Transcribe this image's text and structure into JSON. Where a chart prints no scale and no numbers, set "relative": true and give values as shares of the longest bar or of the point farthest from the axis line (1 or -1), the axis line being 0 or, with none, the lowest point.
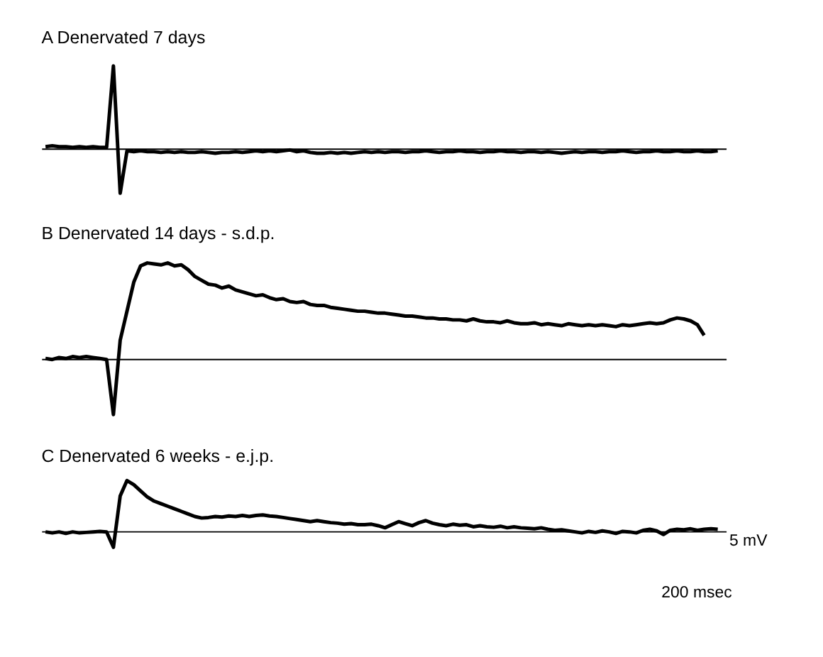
{
  "chart_data": [
    {
      "type": "line",
      "title": "A   Denervated 7 days",
      "relative": true,
      "marker": "none",
      "line_style": "solid",
      "categories": [
        null,
        null,
        null,
        null,
        null,
        null,
        null,
        null,
        null,
        null,
        null,
        null,
        null,
        null,
        null,
        null,
        null,
        null,
        null,
        null,
        null,
        null,
        null,
        null,
        null,
        null,
        null,
        null,
        null,
        null,
        null,
        null,
        null,
        null,
        null,
        null,
        null,
        null,
        null,
        null,
        null,
        null,
        null,
        null,
        null,
        null,
        null,
        null,
        null,
        null,
        null,
        null,
        null,
        null,
        null,
        null,
        null,
        null,
        null,
        null,
        null,
        null,
        null,
        null,
        null,
        null,
        null,
        null,
        null,
        null,
        null,
        null,
        null,
        null,
        null,
        null,
        null,
        null,
        null,
        null,
        null,
        null,
        null,
        null,
        null,
        null,
        null,
        null,
        null,
        null,
        null,
        null,
        null,
        null,
        null,
        null,
        null,
        null,
        null,
        null
      ],
      "ref_lines": [
        {
          "axis": "y",
          "value": 0,
          "color": "#000000"
        }
      ],
      "series": [
        {
          "color": "#000000",
          "values": [
            0.03,
            0.04,
            0.03,
            0.03,
            0.02,
            0.03,
            0.02,
            0.03,
            0.02,
            0.02,
            1.0,
            -0.53,
            -0.02,
            -0.03,
            -0.02,
            -0.03,
            -0.03,
            -0.04,
            -0.03,
            -0.04,
            -0.03,
            -0.04,
            -0.04,
            -0.03,
            -0.04,
            -0.05,
            -0.04,
            -0.04,
            -0.03,
            -0.04,
            -0.03,
            -0.02,
            -0.03,
            -0.02,
            -0.03,
            -0.02,
            -0.01,
            -0.03,
            -0.02,
            -0.04,
            -0.05,
            -0.05,
            -0.04,
            -0.05,
            -0.04,
            -0.05,
            -0.04,
            -0.03,
            -0.04,
            -0.03,
            -0.04,
            -0.03,
            -0.03,
            -0.04,
            -0.03,
            -0.03,
            -0.02,
            -0.03,
            -0.04,
            -0.03,
            -0.03,
            -0.02,
            -0.03,
            -0.03,
            -0.04,
            -0.03,
            -0.03,
            -0.02,
            -0.03,
            -0.03,
            -0.04,
            -0.03,
            -0.03,
            -0.04,
            -0.03,
            -0.04,
            -0.05,
            -0.04,
            -0.03,
            -0.04,
            -0.03,
            -0.03,
            -0.04,
            -0.03,
            -0.03,
            -0.02,
            -0.03,
            -0.04,
            -0.03,
            -0.03,
            -0.02,
            -0.03,
            -0.03,
            -0.02,
            -0.03,
            -0.03,
            -0.02,
            -0.03,
            -0.03,
            -0.02
          ]
        }
      ]
    },
    {
      "type": "line",
      "title": "B   Denervated 14 days - s.d.p.",
      "relative": true,
      "marker": "none",
      "line_style": "solid",
      "categories": [
        null,
        null,
        null,
        null,
        null,
        null,
        null,
        null,
        null,
        null,
        null,
        null,
        null,
        null,
        null,
        null,
        null,
        null,
        null,
        null,
        null,
        null,
        null,
        null,
        null,
        null,
        null,
        null,
        null,
        null,
        null,
        null,
        null,
        null,
        null,
        null,
        null,
        null,
        null,
        null,
        null,
        null,
        null,
        null,
        null,
        null,
        null,
        null,
        null,
        null,
        null,
        null,
        null,
        null,
        null,
        null,
        null,
        null,
        null,
        null,
        null,
        null,
        null,
        null,
        null,
        null,
        null,
        null,
        null,
        null,
        null,
        null,
        null,
        null,
        null,
        null,
        null,
        null,
        null,
        null,
        null,
        null,
        null,
        null,
        null,
        null,
        null,
        null,
        null,
        null,
        null,
        null,
        null,
        null,
        null,
        null,
        null,
        null,
        null,
        null
      ],
      "ref_lines": [
        {
          "axis": "y",
          "value": 0,
          "color": "#000000"
        }
      ],
      "series": [
        {
          "color": "#000000",
          "values": [
            0.01,
            0.0,
            0.02,
            0.01,
            0.03,
            0.02,
            0.03,
            0.02,
            0.01,
            0.0,
            -0.57,
            0.2,
            0.5,
            0.8,
            0.97,
            1.0,
            0.99,
            0.98,
            1.0,
            0.97,
            0.98,
            0.93,
            0.86,
            0.82,
            0.78,
            0.77,
            0.74,
            0.76,
            0.72,
            0.7,
            0.68,
            0.66,
            0.67,
            0.64,
            0.62,
            0.63,
            0.6,
            0.59,
            0.6,
            0.57,
            0.56,
            0.56,
            0.54,
            0.53,
            0.52,
            0.51,
            0.5,
            0.5,
            0.49,
            0.48,
            0.48,
            0.47,
            0.46,
            0.45,
            0.45,
            0.44,
            0.43,
            0.43,
            0.42,
            0.42,
            0.41,
            0.41,
            0.4,
            0.42,
            0.4,
            0.39,
            0.39,
            0.38,
            0.4,
            0.38,
            0.37,
            0.37,
            0.38,
            0.36,
            0.37,
            0.36,
            0.35,
            0.37,
            0.36,
            0.35,
            0.36,
            0.35,
            0.36,
            0.35,
            0.34,
            0.36,
            0.35,
            0.36,
            0.37,
            0.38,
            0.37,
            0.38,
            0.41,
            0.43,
            0.42,
            0.4,
            0.36,
            0.25,
            null,
            null
          ]
        }
      ]
    },
    {
      "type": "line",
      "title": "C   Denervated 6 weeks - e.j.p.",
      "relative": true,
      "marker": "none",
      "line_style": "solid",
      "annotations": [
        "5 mV",
        "200 msec"
      ],
      "categories": [
        null,
        null,
        null,
        null,
        null,
        null,
        null,
        null,
        null,
        null,
        null,
        null,
        null,
        null,
        null,
        null,
        null,
        null,
        null,
        null,
        null,
        null,
        null,
        null,
        null,
        null,
        null,
        null,
        null,
        null,
        null,
        null,
        null,
        null,
        null,
        null,
        null,
        null,
        null,
        null,
        null,
        null,
        null,
        null,
        null,
        null,
        null,
        null,
        null,
        null,
        null,
        null,
        null,
        null,
        null,
        null,
        null,
        null,
        null,
        null,
        null,
        null,
        null,
        null,
        null,
        null,
        null,
        null,
        null,
        null,
        null,
        null,
        null,
        null,
        null,
        null,
        null,
        null,
        null,
        null,
        null,
        null,
        null,
        null,
        null,
        null,
        null,
        null,
        null,
        null,
        null,
        null,
        null,
        null,
        null,
        null,
        null,
        null,
        null,
        null
      ],
      "ref_lines": [
        {
          "axis": "y",
          "value": 0,
          "color": "#000000"
        }
      ],
      "series": [
        {
          "color": "#000000",
          "values": [
            0.0,
            -0.02,
            0.0,
            -0.03,
            0.0,
            -0.02,
            -0.01,
            0.0,
            0.01,
            0.0,
            -0.3,
            0.7,
            1.0,
            0.92,
            0.8,
            0.68,
            0.6,
            0.55,
            0.5,
            0.45,
            0.4,
            0.35,
            0.3,
            0.27,
            0.28,
            0.3,
            0.29,
            0.31,
            0.3,
            0.32,
            0.3,
            0.32,
            0.33,
            0.31,
            0.3,
            0.28,
            0.26,
            0.24,
            0.22,
            0.2,
            0.22,
            0.2,
            0.18,
            0.17,
            0.15,
            0.16,
            0.14,
            0.14,
            0.15,
            0.12,
            0.08,
            0.14,
            0.2,
            0.16,
            0.12,
            0.18,
            0.22,
            0.17,
            0.14,
            0.12,
            0.15,
            0.13,
            0.14,
            0.1,
            0.12,
            0.1,
            0.09,
            0.11,
            0.08,
            0.1,
            0.08,
            0.07,
            0.06,
            0.08,
            0.05,
            0.03,
            0.04,
            0.02,
            0.0,
            -0.02,
            0.01,
            -0.01,
            0.02,
            0.0,
            -0.03,
            0.01,
            0.0,
            -0.02,
            0.03,
            0.05,
            0.02,
            -0.05,
            0.03,
            0.05,
            0.04,
            0.06,
            0.03,
            0.05,
            0.06,
            0.05
          ]
        }
      ]
    }
  ]
}
